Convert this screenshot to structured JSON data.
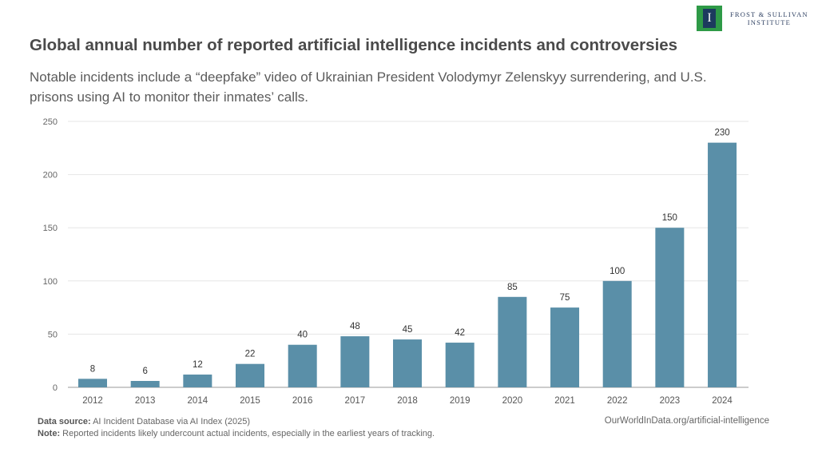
{
  "header": {
    "title": "Global annual number of reported artificial intelligence incidents and controversies",
    "subtitle": "Notable incidents include a “deepfake” video of Ukrainian President Volodymyr Zelenskyy surrendering, and U.S. prisons using AI to monitor their inmates’ calls."
  },
  "logo": {
    "line1": "FROST & SULLIVAN",
    "line2": "INSTITUTE",
    "colors": {
      "green": "#2e9a47",
      "navy": "#1c3a5e"
    }
  },
  "footer": {
    "source_label": "Data source:",
    "source_text": "AI Incident Database via AI Index (2025)",
    "note_label": "Note:",
    "note_text": "Reported incidents likely undercount actual incidents, especially in the earliest years of tracking.",
    "url": "OurWorldInData.org/artificial-intelligence"
  },
  "chart_data": {
    "type": "bar",
    "categories": [
      "2012",
      "2013",
      "2014",
      "2015",
      "2016",
      "2017",
      "2018",
      "2019",
      "2020",
      "2021",
      "2022",
      "2023",
      "2024"
    ],
    "values": [
      8,
      6,
      12,
      22,
      40,
      48,
      45,
      42,
      85,
      75,
      100,
      150,
      230
    ],
    "ylim": [
      0,
      250
    ],
    "yticks": [
      0,
      50,
      100,
      150,
      200,
      250
    ],
    "grid": true,
    "bar_color": "#5a8fa8",
    "data_labels": true
  }
}
